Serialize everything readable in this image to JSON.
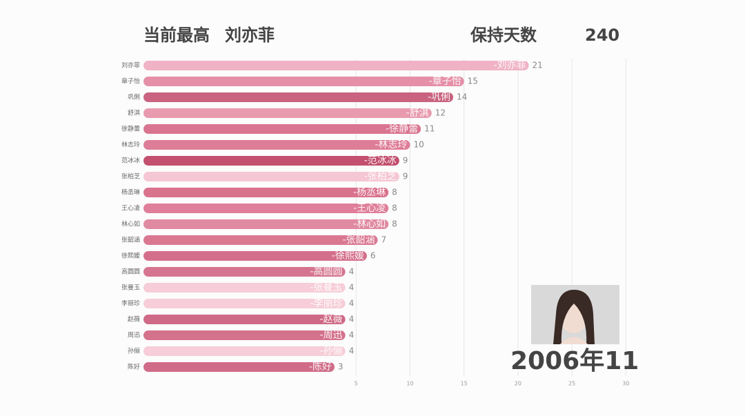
{
  "chart_data": {
    "type": "bar",
    "orientation": "horizontal",
    "header": {
      "leader_label": "当前最高",
      "leader_name": "刘亦菲",
      "days_label": "保持天数",
      "days_value": 240
    },
    "date_label": "2006年11",
    "categories": [
      "刘亦菲",
      "章子怡",
      "巩俐",
      "舒淇",
      "徐静蕾",
      "林志玲",
      "范冰冰",
      "张柏芝",
      "杨丞琳",
      "王心凌",
      "林心如",
      "张韶涵",
      "徐熙媛",
      "高圆圆",
      "张曼玉",
      "李丽珍",
      "赵薇",
      "周迅",
      "孙俪",
      "陈好"
    ],
    "bar_labels": [
      "-刘亦菲",
      "-章子怡",
      "-巩俐",
      "-舒淇",
      "-徐静蕾",
      "-林志玲",
      "-范冰冰",
      "-张柏芝",
      "-杨丞琳",
      "-王心凌",
      "-林心如",
      "-张韶涵",
      "-徐熙媛",
      "-高圆圆",
      "-张曼玉",
      "-李丽珍",
      "-赵薇",
      "-周迅",
      "-孙俪",
      "-陈好"
    ],
    "values": [
      21,
      15,
      14,
      12,
      11,
      10,
      9,
      9,
      8,
      8,
      8,
      7,
      6,
      4,
      4,
      4,
      4,
      4,
      4,
      3
    ],
    "colors": [
      "#f0b3c6",
      "#e58fa8",
      "#c9637f",
      "#e89aae",
      "#d97590",
      "#de7d97",
      "#c2506e",
      "#f5c6d3",
      "#d9728d",
      "#df7f99",
      "#e08aa1",
      "#da7892",
      "#d46f8b",
      "#d6758f",
      "#f6cdd8",
      "#f6cdd8",
      "#cf6a86",
      "#d4728c",
      "#f6cdd8",
      "#d06c88"
    ],
    "xlim": [
      -14.7,
      31
    ],
    "xticks": [
      5,
      10,
      15,
      20,
      25,
      30
    ],
    "grid": true
  }
}
